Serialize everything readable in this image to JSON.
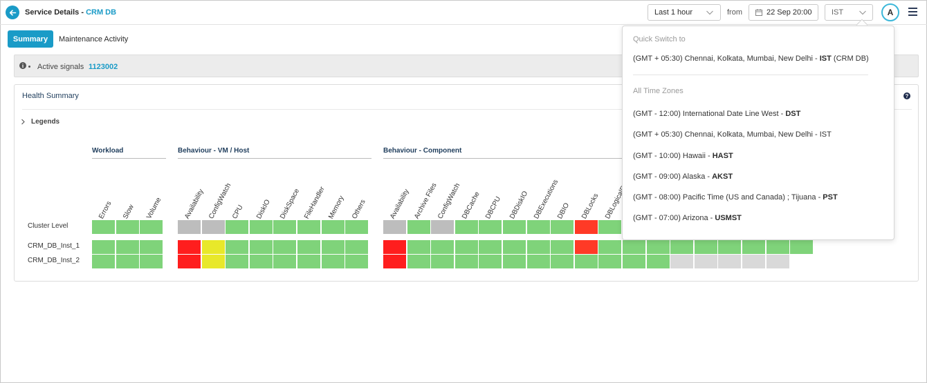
{
  "header": {
    "title": "Service Details - ",
    "service_name": "CRM DB",
    "range_label": "Last 1 hour",
    "from_label": "from",
    "date_label": "22 Sep 20:00",
    "timezone_label": "IST",
    "avatar_letter": "A"
  },
  "tabs": [
    {
      "label": "Summary",
      "active": true
    },
    {
      "label": "Maintenance Activity",
      "active": false
    }
  ],
  "signals": {
    "label": "Active signals",
    "value": "1123002"
  },
  "health": {
    "title": "Health Summary",
    "legends_label": "Legends",
    "groups": [
      {
        "title": "Workload"
      },
      {
        "title": "Behaviour - VM / Host"
      },
      {
        "title": "Behaviour - Component"
      }
    ],
    "columns": {
      "workload": [
        "Errors",
        "Slow",
        "Volume"
      ],
      "vm_host": [
        "Availability",
        "ConfigWatch",
        "CPU",
        "DiskIO",
        "DiskSpace",
        "FileHandler",
        "Memory",
        "Others"
      ],
      "component": [
        "Availability",
        "Archive Files",
        "ConfigWatch",
        "DBCache",
        "DBCPU",
        "DBDiskIO",
        "DBExecutions",
        "DBIO",
        "DBLocks",
        "DBLogicalRe"
      ]
    },
    "rows": [
      "Cluster Level",
      "CRM_DB_Inst_1",
      "CRM_DB_Inst_2"
    ],
    "status_colors": {
      "G": "#7fd37a",
      "R": "#ff1e1e",
      "O": "#ff3a26",
      "Y": "#e8e82a",
      "X": "#bdbdbd",
      "L": "#d9d9d9"
    },
    "cells": [
      "GGG|XXGGGGGG|XGXGGGGGOGGGGGGGGG",
      "GGG|RYGGGGGG|RGGGGGGGOGGGGGGGGG",
      "GGG|RYGGGGGG|RGGGGGGGGGGGLLLLL"
    ]
  },
  "tz_dropdown": {
    "quick_title": "Quick Switch to",
    "quick_item": {
      "prefix": "(GMT + 05:30) Chennai, Kolkata, Mumbai, New Delhi - ",
      "code": "IST",
      "suffix": " (CRM DB)"
    },
    "all_title": "All Time Zones",
    "items": [
      {
        "prefix": "(GMT - 12:00) International Date Line West - ",
        "code": "DST",
        "bold": true
      },
      {
        "prefix": "(GMT + 05:30) Chennai, Kolkata, Mumbai, New Delhi - ",
        "code": "IST",
        "bold": false
      },
      {
        "prefix": "(GMT - 10:00) Hawaii - ",
        "code": "HAST",
        "bold": true
      },
      {
        "prefix": "(GMT - 09:00) Alaska - ",
        "code": "AKST",
        "bold": true
      },
      {
        "prefix": "(GMT - 08:00) Pacific Time (US and Canada) ; Tijuana - ",
        "code": "PST",
        "bold": true
      },
      {
        "prefix": "(GMT - 07:00) Arizona - ",
        "code": "USMST",
        "bold": true
      }
    ]
  },
  "icons": {
    "back": "arrow-left-icon",
    "chevron": "chevron-down-icon",
    "calendar": "calendar-icon",
    "menu": "hamburger-menu-icon",
    "info": "info-icon",
    "help": "help-icon",
    "caret": "chevron-right-icon"
  }
}
